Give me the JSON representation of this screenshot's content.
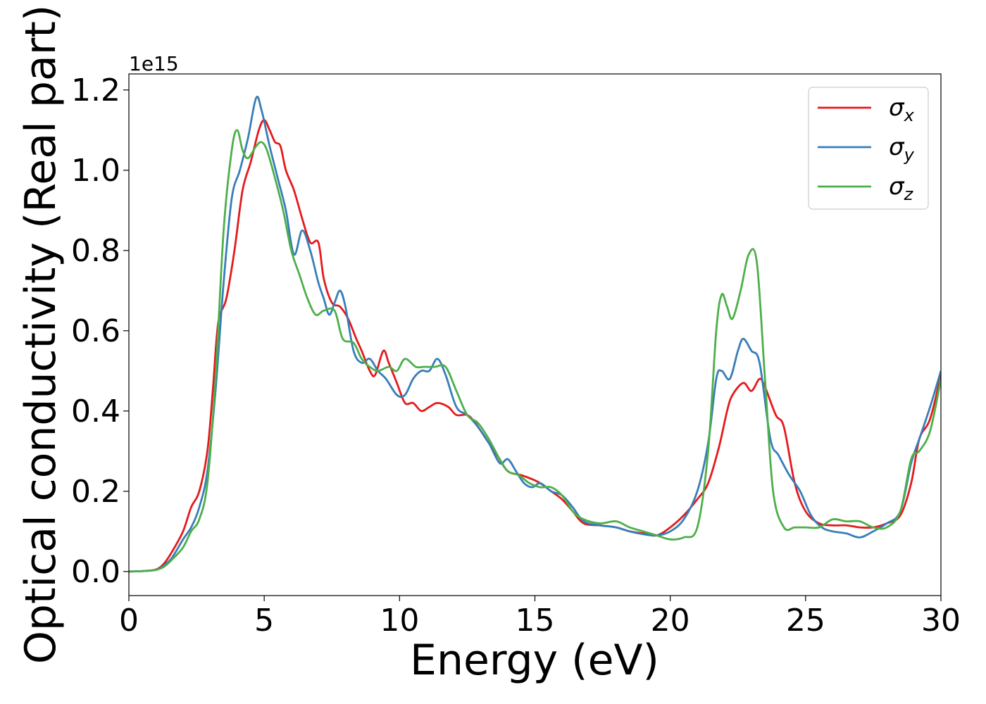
{
  "chart_data": {
    "type": "line",
    "xlabel": "Energy (eV)",
    "ylabel": "Optical conductivity (Real part)",
    "y_offset_label": "1e15",
    "xlim": [
      0,
      30
    ],
    "ylim": [
      -0.06,
      1.24
    ],
    "x_ticks": [
      0,
      5,
      10,
      15,
      20,
      25,
      30
    ],
    "x_tick_labels": [
      "0",
      "5",
      "10",
      "15",
      "20",
      "25",
      "30"
    ],
    "y_ticks": [
      0.0,
      0.2,
      0.4,
      0.6,
      0.8,
      1.0,
      1.2
    ],
    "y_tick_labels": [
      "0.0",
      "0.2",
      "0.4",
      "0.6",
      "0.8",
      "1.0",
      "1.2"
    ],
    "grid": false,
    "legend_position": "top-right",
    "series": [
      {
        "name": "σx",
        "legend_base": "σ",
        "legend_sub": "x",
        "color": "#e41a1c",
        "points": [
          [
            0,
            0
          ],
          [
            0.5,
            0.001
          ],
          [
            1,
            0.005
          ],
          [
            1.3,
            0.02
          ],
          [
            1.6,
            0.05
          ],
          [
            2,
            0.1
          ],
          [
            2.3,
            0.16
          ],
          [
            2.6,
            0.2
          ],
          [
            2.9,
            0.3
          ],
          [
            3.1,
            0.45
          ],
          [
            3.3,
            0.62
          ],
          [
            3.6,
            0.68
          ],
          [
            3.9,
            0.8
          ],
          [
            4.2,
            0.95
          ],
          [
            4.5,
            1.02
          ],
          [
            4.8,
            1.1
          ],
          [
            5,
            1.125
          ],
          [
            5.2,
            1.1
          ],
          [
            5.4,
            1.07
          ],
          [
            5.6,
            1.06
          ],
          [
            5.8,
            1.0
          ],
          [
            6.1,
            0.95
          ],
          [
            6.4,
            0.88
          ],
          [
            6.7,
            0.82
          ],
          [
            7,
            0.82
          ],
          [
            7.2,
            0.73
          ],
          [
            7.5,
            0.67
          ],
          [
            7.8,
            0.66
          ],
          [
            8.1,
            0.63
          ],
          [
            8.4,
            0.58
          ],
          [
            8.6,
            0.55
          ],
          [
            8.9,
            0.5
          ],
          [
            9.1,
            0.49
          ],
          [
            9.4,
            0.55
          ],
          [
            9.6,
            0.52
          ],
          [
            9.9,
            0.47
          ],
          [
            10.2,
            0.42
          ],
          [
            10.5,
            0.42
          ],
          [
            10.8,
            0.4
          ],
          [
            11.1,
            0.41
          ],
          [
            11.4,
            0.42
          ],
          [
            11.8,
            0.41
          ],
          [
            12.1,
            0.39
          ],
          [
            12.5,
            0.39
          ],
          [
            12.8,
            0.37
          ],
          [
            13.2,
            0.33
          ],
          [
            13.6,
            0.29
          ],
          [
            14,
            0.25
          ],
          [
            14.5,
            0.24
          ],
          [
            14.9,
            0.23
          ],
          [
            15.2,
            0.22
          ],
          [
            15.6,
            0.2
          ],
          [
            16,
            0.18
          ],
          [
            16.4,
            0.15
          ],
          [
            16.8,
            0.12
          ],
          [
            17.4,
            0.115
          ],
          [
            18,
            0.11
          ],
          [
            18.5,
            0.1
          ],
          [
            19,
            0.095
          ],
          [
            19.5,
            0.09
          ],
          [
            20,
            0.11
          ],
          [
            20.5,
            0.14
          ],
          [
            21,
            0.18
          ],
          [
            21.4,
            0.22
          ],
          [
            21.8,
            0.31
          ],
          [
            22.1,
            0.4
          ],
          [
            22.3,
            0.44
          ],
          [
            22.7,
            0.47
          ],
          [
            23,
            0.45
          ],
          [
            23.3,
            0.48
          ],
          [
            23.5,
            0.46
          ],
          [
            23.9,
            0.39
          ],
          [
            24.2,
            0.36
          ],
          [
            24.6,
            0.22
          ],
          [
            25,
            0.15
          ],
          [
            25.5,
            0.12
          ],
          [
            26,
            0.115
          ],
          [
            26.5,
            0.115
          ],
          [
            27,
            0.11
          ],
          [
            27.5,
            0.11
          ],
          [
            28,
            0.12
          ],
          [
            28.5,
            0.14
          ],
          [
            28.9,
            0.22
          ],
          [
            29.2,
            0.33
          ],
          [
            29.6,
            0.38
          ],
          [
            30,
            0.49
          ]
        ]
      },
      {
        "name": "σy",
        "legend_base": "σ",
        "legend_sub": "y",
        "color": "#377eb8",
        "points": [
          [
            0,
            0
          ],
          [
            0.5,
            0.001
          ],
          [
            1,
            0.004
          ],
          [
            1.3,
            0.015
          ],
          [
            1.6,
            0.035
          ],
          [
            2,
            0.08
          ],
          [
            2.3,
            0.11
          ],
          [
            2.6,
            0.16
          ],
          [
            2.9,
            0.25
          ],
          [
            3.2,
            0.45
          ],
          [
            3.5,
            0.72
          ],
          [
            3.8,
            0.93
          ],
          [
            4.1,
            1.0
          ],
          [
            4.4,
            1.08
          ],
          [
            4.7,
            1.18
          ],
          [
            4.9,
            1.15
          ],
          [
            5.2,
            1.06
          ],
          [
            5.5,
            0.98
          ],
          [
            5.8,
            0.9
          ],
          [
            6.1,
            0.79
          ],
          [
            6.4,
            0.85
          ],
          [
            6.7,
            0.8
          ],
          [
            7,
            0.72
          ],
          [
            7.2,
            0.68
          ],
          [
            7.4,
            0.64
          ],
          [
            7.6,
            0.67
          ],
          [
            7.8,
            0.7
          ],
          [
            8,
            0.66
          ],
          [
            8.3,
            0.55
          ],
          [
            8.6,
            0.52
          ],
          [
            8.9,
            0.53
          ],
          [
            9.2,
            0.5
          ],
          [
            9.5,
            0.48
          ],
          [
            9.9,
            0.44
          ],
          [
            10.2,
            0.44
          ],
          [
            10.5,
            0.48
          ],
          [
            10.8,
            0.5
          ],
          [
            11.1,
            0.5
          ],
          [
            11.4,
            0.53
          ],
          [
            11.7,
            0.49
          ],
          [
            12.1,
            0.41
          ],
          [
            12.5,
            0.39
          ],
          [
            12.9,
            0.36
          ],
          [
            13.3,
            0.32
          ],
          [
            13.7,
            0.27
          ],
          [
            14,
            0.28
          ],
          [
            14.3,
            0.25
          ],
          [
            14.6,
            0.22
          ],
          [
            14.9,
            0.21
          ],
          [
            15.2,
            0.22
          ],
          [
            15.6,
            0.2
          ],
          [
            16,
            0.19
          ],
          [
            16.4,
            0.16
          ],
          [
            16.8,
            0.125
          ],
          [
            17.4,
            0.115
          ],
          [
            18,
            0.11
          ],
          [
            18.5,
            0.1
          ],
          [
            19,
            0.093
          ],
          [
            19.5,
            0.09
          ],
          [
            20,
            0.1
          ],
          [
            20.5,
            0.13
          ],
          [
            21,
            0.2
          ],
          [
            21.4,
            0.32
          ],
          [
            21.7,
            0.48
          ],
          [
            21.9,
            0.5
          ],
          [
            22.2,
            0.48
          ],
          [
            22.5,
            0.55
          ],
          [
            22.7,
            0.58
          ],
          [
            23,
            0.55
          ],
          [
            23.3,
            0.52
          ],
          [
            23.7,
            0.33
          ],
          [
            24,
            0.29
          ],
          [
            24.4,
            0.24
          ],
          [
            24.8,
            0.2
          ],
          [
            25.2,
            0.14
          ],
          [
            25.6,
            0.11
          ],
          [
            26,
            0.1
          ],
          [
            26.5,
            0.095
          ],
          [
            27,
            0.085
          ],
          [
            27.5,
            0.1
          ],
          [
            28,
            0.12
          ],
          [
            28.5,
            0.15
          ],
          [
            28.9,
            0.27
          ],
          [
            29.2,
            0.33
          ],
          [
            29.6,
            0.41
          ],
          [
            30,
            0.5
          ]
        ]
      },
      {
        "name": "σz",
        "legend_base": "σ",
        "legend_sub": "z",
        "color": "#4daf4a",
        "points": [
          [
            0,
            0
          ],
          [
            0.5,
            0.001
          ],
          [
            1,
            0.004
          ],
          [
            1.3,
            0.012
          ],
          [
            1.6,
            0.03
          ],
          [
            2,
            0.06
          ],
          [
            2.3,
            0.1
          ],
          [
            2.6,
            0.13
          ],
          [
            2.9,
            0.22
          ],
          [
            3.2,
            0.48
          ],
          [
            3.5,
            0.85
          ],
          [
            3.8,
            1.05
          ],
          [
            4,
            1.1
          ],
          [
            4.2,
            1.05
          ],
          [
            4.4,
            1.03
          ],
          [
            4.7,
            1.06
          ],
          [
            4.9,
            1.07
          ],
          [
            5.1,
            1.05
          ],
          [
            5.4,
            0.98
          ],
          [
            5.7,
            0.9
          ],
          [
            6,
            0.8
          ],
          [
            6.3,
            0.74
          ],
          [
            6.6,
            0.68
          ],
          [
            6.9,
            0.64
          ],
          [
            7.2,
            0.65
          ],
          [
            7.6,
            0.65
          ],
          [
            7.9,
            0.58
          ],
          [
            8.3,
            0.57
          ],
          [
            8.6,
            0.53
          ],
          [
            8.9,
            0.51
          ],
          [
            9.2,
            0.5
          ],
          [
            9.6,
            0.51
          ],
          [
            9.9,
            0.5
          ],
          [
            10.2,
            0.53
          ],
          [
            10.6,
            0.51
          ],
          [
            10.9,
            0.51
          ],
          [
            11.3,
            0.51
          ],
          [
            11.7,
            0.51
          ],
          [
            12.1,
            0.45
          ],
          [
            12.5,
            0.39
          ],
          [
            12.9,
            0.37
          ],
          [
            13.3,
            0.33
          ],
          [
            13.7,
            0.28
          ],
          [
            14,
            0.25
          ],
          [
            14.4,
            0.24
          ],
          [
            14.8,
            0.22
          ],
          [
            15.2,
            0.21
          ],
          [
            15.6,
            0.21
          ],
          [
            16,
            0.19
          ],
          [
            16.4,
            0.15
          ],
          [
            16.8,
            0.13
          ],
          [
            17.4,
            0.12
          ],
          [
            18,
            0.125
          ],
          [
            18.5,
            0.11
          ],
          [
            19,
            0.1
          ],
          [
            19.5,
            0.09
          ],
          [
            20,
            0.08
          ],
          [
            20.5,
            0.085
          ],
          [
            21,
            0.11
          ],
          [
            21.4,
            0.3
          ],
          [
            21.7,
            0.6
          ],
          [
            21.9,
            0.69
          ],
          [
            22.1,
            0.66
          ],
          [
            22.3,
            0.63
          ],
          [
            22.6,
            0.7
          ],
          [
            22.9,
            0.79
          ],
          [
            23.2,
            0.77
          ],
          [
            23.5,
            0.48
          ],
          [
            23.8,
            0.2
          ],
          [
            24.2,
            0.11
          ],
          [
            24.6,
            0.11
          ],
          [
            25,
            0.11
          ],
          [
            25.5,
            0.11
          ],
          [
            26,
            0.13
          ],
          [
            26.5,
            0.125
          ],
          [
            27,
            0.125
          ],
          [
            27.5,
            0.11
          ],
          [
            28,
            0.11
          ],
          [
            28.5,
            0.15
          ],
          [
            28.9,
            0.28
          ],
          [
            29.2,
            0.3
          ],
          [
            29.6,
            0.35
          ],
          [
            30,
            0.48
          ]
        ]
      }
    ]
  }
}
